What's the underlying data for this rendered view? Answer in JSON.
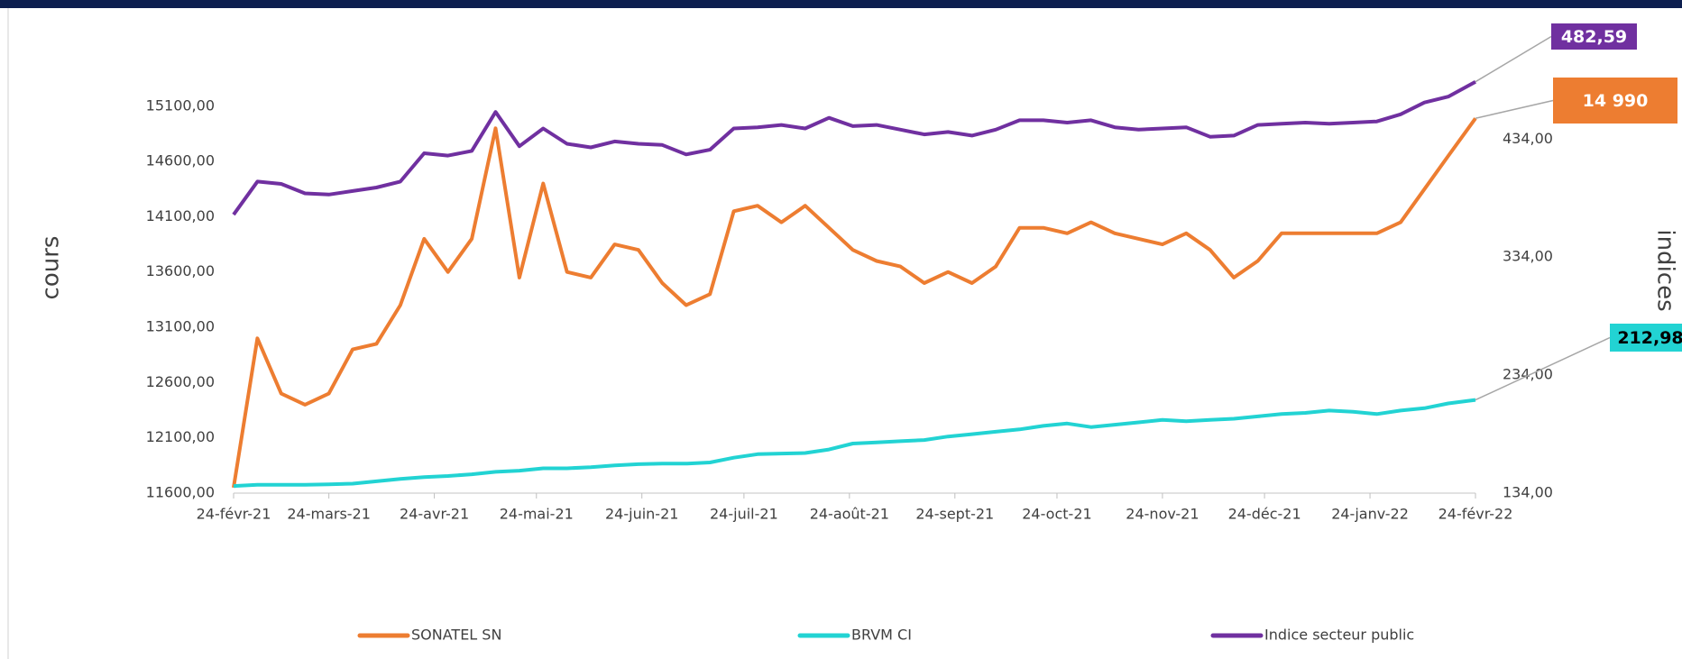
{
  "chart_data": {
    "type": "line",
    "y_label": "cours",
    "y2_label": "indices",
    "x": [
      "2021-02-24",
      "2021-03-03",
      "2021-03-10",
      "2021-03-17",
      "2021-03-24",
      "2021-03-31",
      "2021-04-07",
      "2021-04-14",
      "2021-04-21",
      "2021-04-28",
      "2021-05-05",
      "2021-05-12",
      "2021-05-19",
      "2021-05-26",
      "2021-06-02",
      "2021-06-09",
      "2021-06-16",
      "2021-06-23",
      "2021-06-30",
      "2021-07-07",
      "2021-07-14",
      "2021-07-21",
      "2021-07-28",
      "2021-08-04",
      "2021-08-11",
      "2021-08-18",
      "2021-08-25",
      "2021-09-01",
      "2021-09-08",
      "2021-09-15",
      "2021-09-22",
      "2021-09-29",
      "2021-10-06",
      "2021-10-13",
      "2021-10-20",
      "2021-10-27",
      "2021-11-03",
      "2021-11-10",
      "2021-11-17",
      "2021-11-24",
      "2021-12-01",
      "2021-12-08",
      "2021-12-15",
      "2021-12-22",
      "2021-12-29",
      "2022-01-05",
      "2022-01-12",
      "2022-01-19",
      "2022-01-26",
      "2022-02-02",
      "2022-02-09",
      "2022-02-16",
      "2022-02-24"
    ],
    "xlim": [
      "2021-02-24",
      "2022-02-24"
    ],
    "xticks": [
      {
        "value": "2021-02-24",
        "label": "24-févr-21"
      },
      {
        "value": "2021-03-24",
        "label": "24-mars-21"
      },
      {
        "value": "2021-04-24",
        "label": "24-avr-21"
      },
      {
        "value": "2021-05-24",
        "label": "24-mai-21"
      },
      {
        "value": "2021-06-24",
        "label": "24-juin-21"
      },
      {
        "value": "2021-07-24",
        "label": "24-juil-21"
      },
      {
        "value": "2021-08-24",
        "label": "24-août-21"
      },
      {
        "value": "2021-09-24",
        "label": "24-sept-21"
      },
      {
        "value": "2021-10-24",
        "label": "24-oct-21"
      },
      {
        "value": "2021-11-24",
        "label": "24-nov-21"
      },
      {
        "value": "2021-12-24",
        "label": "24-déc-21"
      },
      {
        "value": "2022-01-24",
        "label": "24-janv-22"
      },
      {
        "value": "2022-02-24",
        "label": "24-févr-22"
      }
    ],
    "ylim": [
      11600,
      15400
    ],
    "yticks": [
      {
        "value": 11600,
        "label": "11600,00"
      },
      {
        "value": 12100,
        "label": "12100,00"
      },
      {
        "value": 12600,
        "label": "12600,00"
      },
      {
        "value": 13100,
        "label": "13100,00"
      },
      {
        "value": 13600,
        "label": "13600,00"
      },
      {
        "value": 14100,
        "label": "14100,00"
      },
      {
        "value": 14600,
        "label": "14600,00"
      },
      {
        "value": 15100,
        "label": "15100,00"
      }
    ],
    "y2lim": [
      134,
      490
    ],
    "y2ticks": [
      {
        "value": 134,
        "label": "134,00"
      },
      {
        "value": 234,
        "label": "234,00"
      },
      {
        "value": 334,
        "label": "334,00"
      },
      {
        "value": 434,
        "label": "434,00"
      }
    ],
    "series": [
      {
        "name": "SONATEL SN",
        "color": "#ED7D31",
        "values": [
          11650,
          13000,
          12500,
          12400,
          12500,
          12900,
          12950,
          13300,
          13900,
          13600,
          13900,
          14900,
          13550,
          14400,
          13600,
          13550,
          13850,
          13800,
          13500,
          13300,
          13400,
          14150,
          14200,
          14050,
          14200,
          14000,
          13800,
          13700,
          13650,
          13500,
          13600,
          13500,
          13650,
          14000,
          14000,
          13950,
          14050,
          13950,
          13900,
          13850,
          13950,
          13800,
          13550,
          13700,
          13950,
          13950,
          13950,
          13950,
          13950,
          14050,
          14350,
          14650,
          14990
        ],
        "value_labels": [
          null,
          null,
          null,
          null,
          null,
          null,
          null,
          null,
          null,
          null,
          null,
          null,
          null,
          null,
          null,
          null,
          null,
          null,
          null,
          null,
          null,
          null,
          null,
          null,
          null,
          null,
          null,
          null,
          null,
          null,
          null,
          null,
          null,
          null,
          null,
          null,
          null,
          null,
          null,
          null,
          null,
          null,
          null,
          null,
          null,
          null,
          null,
          null,
          null,
          null,
          null,
          null,
          "14 990"
        ]
      },
      {
        "name": "BRVM CI",
        "color": "#22D3D3",
        "axis": "y2",
        "values": [
          140,
          141,
          141,
          141,
          141.5,
          142,
          144,
          146,
          147.5,
          148.5,
          150,
          152,
          153,
          155,
          155,
          156,
          157.5,
          158.5,
          159,
          159,
          160,
          164,
          167,
          167.5,
          168,
          171,
          176,
          177,
          178,
          179,
          182,
          184,
          186,
          188,
          191,
          193,
          190,
          192,
          194,
          196,
          195,
          196,
          197,
          199,
          201,
          202,
          204,
          203,
          201,
          204,
          206,
          210,
          212.98
        ],
        "value_labels": [
          null,
          null,
          null,
          null,
          null,
          null,
          null,
          null,
          null,
          null,
          null,
          null,
          null,
          null,
          null,
          null,
          null,
          null,
          null,
          null,
          null,
          null,
          null,
          null,
          null,
          null,
          null,
          null,
          null,
          null,
          null,
          null,
          null,
          null,
          null,
          null,
          null,
          null,
          null,
          null,
          null,
          null,
          null,
          null,
          null,
          null,
          null,
          null,
          null,
          null,
          null,
          null,
          "212,98"
        ]
      },
      {
        "name": "Indice secteur public",
        "color": "#7030A0",
        "axis": "y2",
        "values": [
          370,
          398,
          396,
          388,
          387,
          390,
          393,
          398,
          422,
          420,
          424,
          457,
          428,
          443,
          430,
          427,
          432,
          430,
          429,
          421,
          425,
          443,
          444,
          446,
          443,
          452,
          445,
          446,
          442,
          438,
          440,
          437,
          442,
          450,
          450,
          448,
          450,
          444,
          442,
          443,
          444,
          436,
          437,
          446,
          447,
          448,
          447,
          448,
          449,
          455,
          465,
          470,
          482.59
        ],
        "value_labels": [
          null,
          null,
          null,
          null,
          null,
          null,
          null,
          null,
          null,
          null,
          null,
          null,
          null,
          null,
          null,
          null,
          null,
          null,
          null,
          null,
          null,
          null,
          null,
          null,
          null,
          null,
          null,
          null,
          null,
          null,
          null,
          null,
          null,
          null,
          null,
          null,
          null,
          null,
          null,
          null,
          null,
          null,
          null,
          null,
          null,
          null,
          null,
          null,
          null,
          null,
          null,
          null,
          "482,59"
        ]
      }
    ]
  }
}
